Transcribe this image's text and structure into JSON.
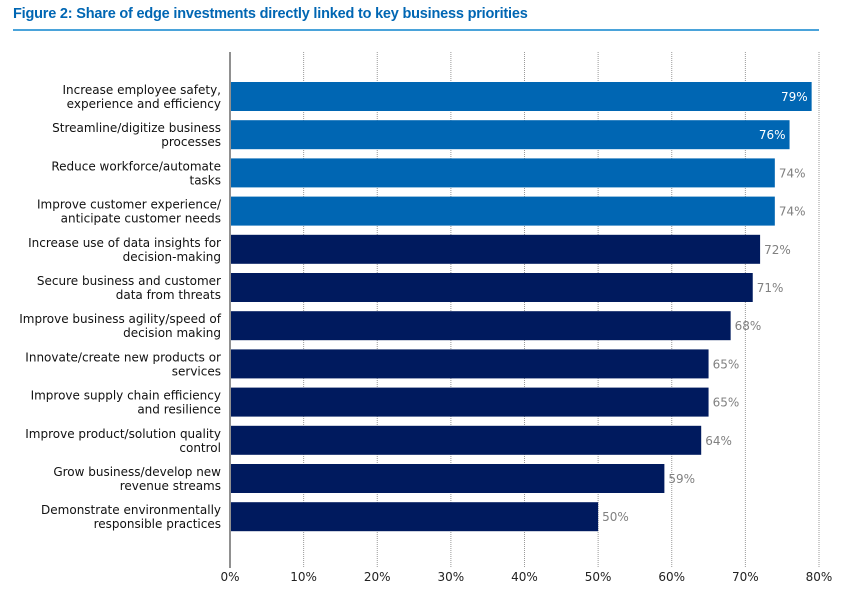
{
  "chart_data": {
    "type": "bar",
    "orientation": "horizontal",
    "title": "Figure 2: Share of edge investments directly linked to key business priorities",
    "xlabel": "",
    "ylabel": "",
    "xlim": [
      0,
      80
    ],
    "grid": true,
    "xticks": [
      "0%",
      "10%",
      "20%",
      "30%",
      "40%",
      "50%",
      "60%",
      "70%",
      "80%"
    ],
    "categories": [
      [
        "Increase employee safety,",
        "experience and efficiency"
      ],
      [
        "Streamline/digitize business",
        "processes"
      ],
      [
        "Reduce workforce/automate",
        "tasks"
      ],
      [
        "Improve customer experience/",
        "anticipate customer needs"
      ],
      [
        "Increase use of data insights for",
        "decision-making"
      ],
      [
        "Secure business and customer",
        "data from threats"
      ],
      [
        "Improve business agility/speed of",
        "decision making"
      ],
      [
        "Innovate/create new products or",
        "services"
      ],
      [
        "Improve supply chain efficiency",
        "and resilience"
      ],
      [
        "Improve product/solution quality",
        "control"
      ],
      [
        "Grow business/develop new",
        "revenue streams"
      ],
      [
        "Demonstrate environmentally",
        "responsible practices"
      ]
    ],
    "values": [
      79,
      76,
      74,
      74,
      72,
      71,
      68,
      65,
      65,
      64,
      59,
      50
    ],
    "labels": [
      "79%",
      "76%",
      "74%",
      "74%",
      "72%",
      "71%",
      "68%",
      "65%",
      "65%",
      "64%",
      "59%",
      "50%"
    ],
    "groups": [
      "top",
      "top",
      "top",
      "top",
      "other",
      "other",
      "other",
      "other",
      "other",
      "other",
      "other",
      "other"
    ],
    "label_inside": [
      true,
      true,
      false,
      false,
      false,
      false,
      false,
      false,
      false,
      false,
      false,
      false
    ]
  },
  "colors": {
    "title": "#0066b3",
    "rule": "#4aa3da",
    "top": "#0066b3",
    "other": "#001a5e",
    "label_inside": "#ffffff",
    "label_outside": "#808080",
    "grid": "#999999",
    "axis": "#222222"
  }
}
